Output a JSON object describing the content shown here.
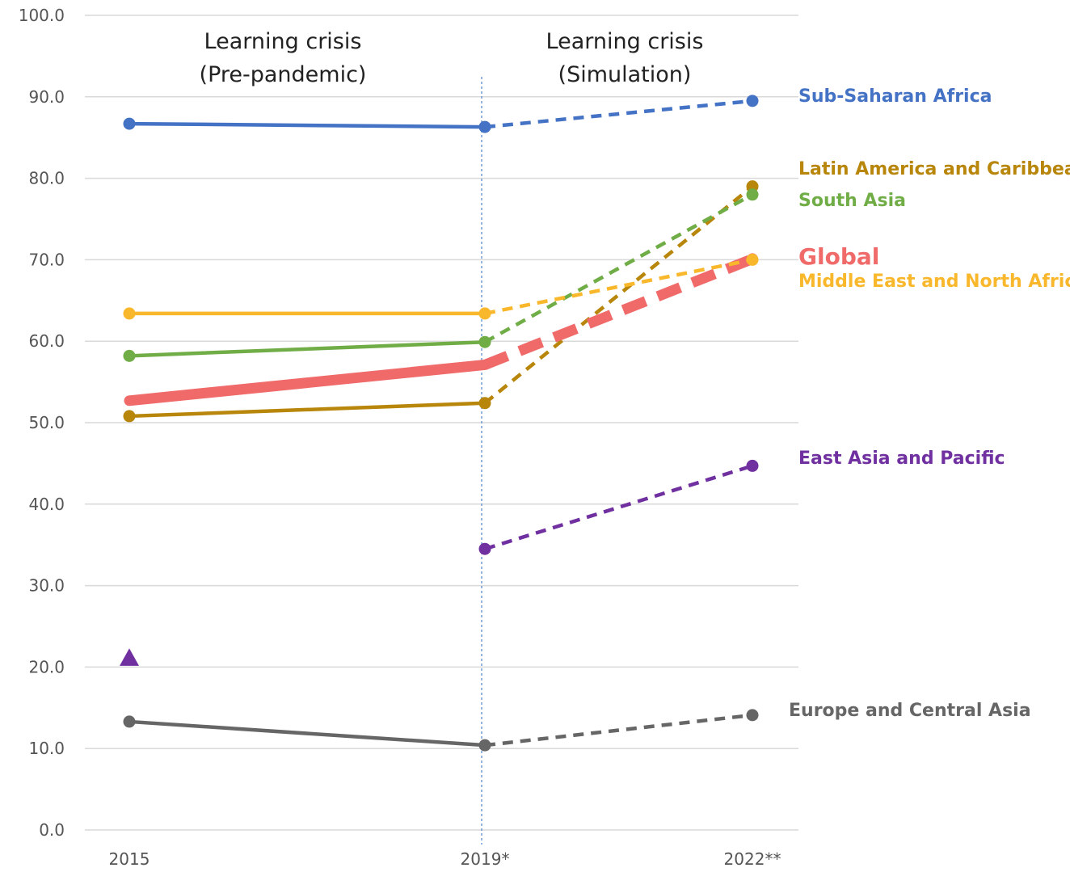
{
  "chart_data": {
    "type": "line",
    "x": [
      "2015",
      "2019*",
      "2022**"
    ],
    "ylim": [
      0,
      100
    ],
    "y_ticks": [
      "0.0",
      "10.0",
      "20.0",
      "30.0",
      "40.0",
      "50.0",
      "60.0",
      "70.0",
      "80.0",
      "90.0",
      "100.0"
    ],
    "grid": true,
    "annotations": [
      {
        "line1": "Learning crisis",
        "line2": "(Pre-pandemic)"
      },
      {
        "line1": "Learning crisis",
        "line2": "(Simulation)"
      }
    ],
    "note": "Solid segment 2015 to 2019* (pre-pandemic); dashed segment 2019* to 2022** (simulation)",
    "series": [
      {
        "name": "Sub-Saharan Africa",
        "color": "#4472C4",
        "values": [
          86.7,
          86.3,
          89.5
        ],
        "emphasis": false
      },
      {
        "name": "Latin America and Caribbean",
        "color": "#B8860B",
        "values": [
          50.8,
          52.4,
          79.0
        ],
        "emphasis": false
      },
      {
        "name": "South Asia",
        "color": "#70AD47",
        "values": [
          58.2,
          59.9,
          78.0
        ],
        "emphasis": false
      },
      {
        "name": "Global",
        "color": "#F06A6A",
        "values": [
          52.7,
          57.1,
          70.1
        ],
        "emphasis": true
      },
      {
        "name": "Middle East and North Africa",
        "color": "#F9B82B",
        "values": [
          63.4,
          63.4,
          70.0
        ],
        "emphasis": false
      },
      {
        "name": "East Asia and Pacific",
        "color": "#7030A0",
        "values": [
          21.1,
          34.5,
          44.7
        ],
        "emphasis": false,
        "first_point_marker": "triangle",
        "first_segment_line": false
      },
      {
        "name": "Europe and Central Asia",
        "color": "#666666",
        "values": [
          13.3,
          10.4,
          14.1
        ],
        "emphasis": false
      }
    ]
  }
}
